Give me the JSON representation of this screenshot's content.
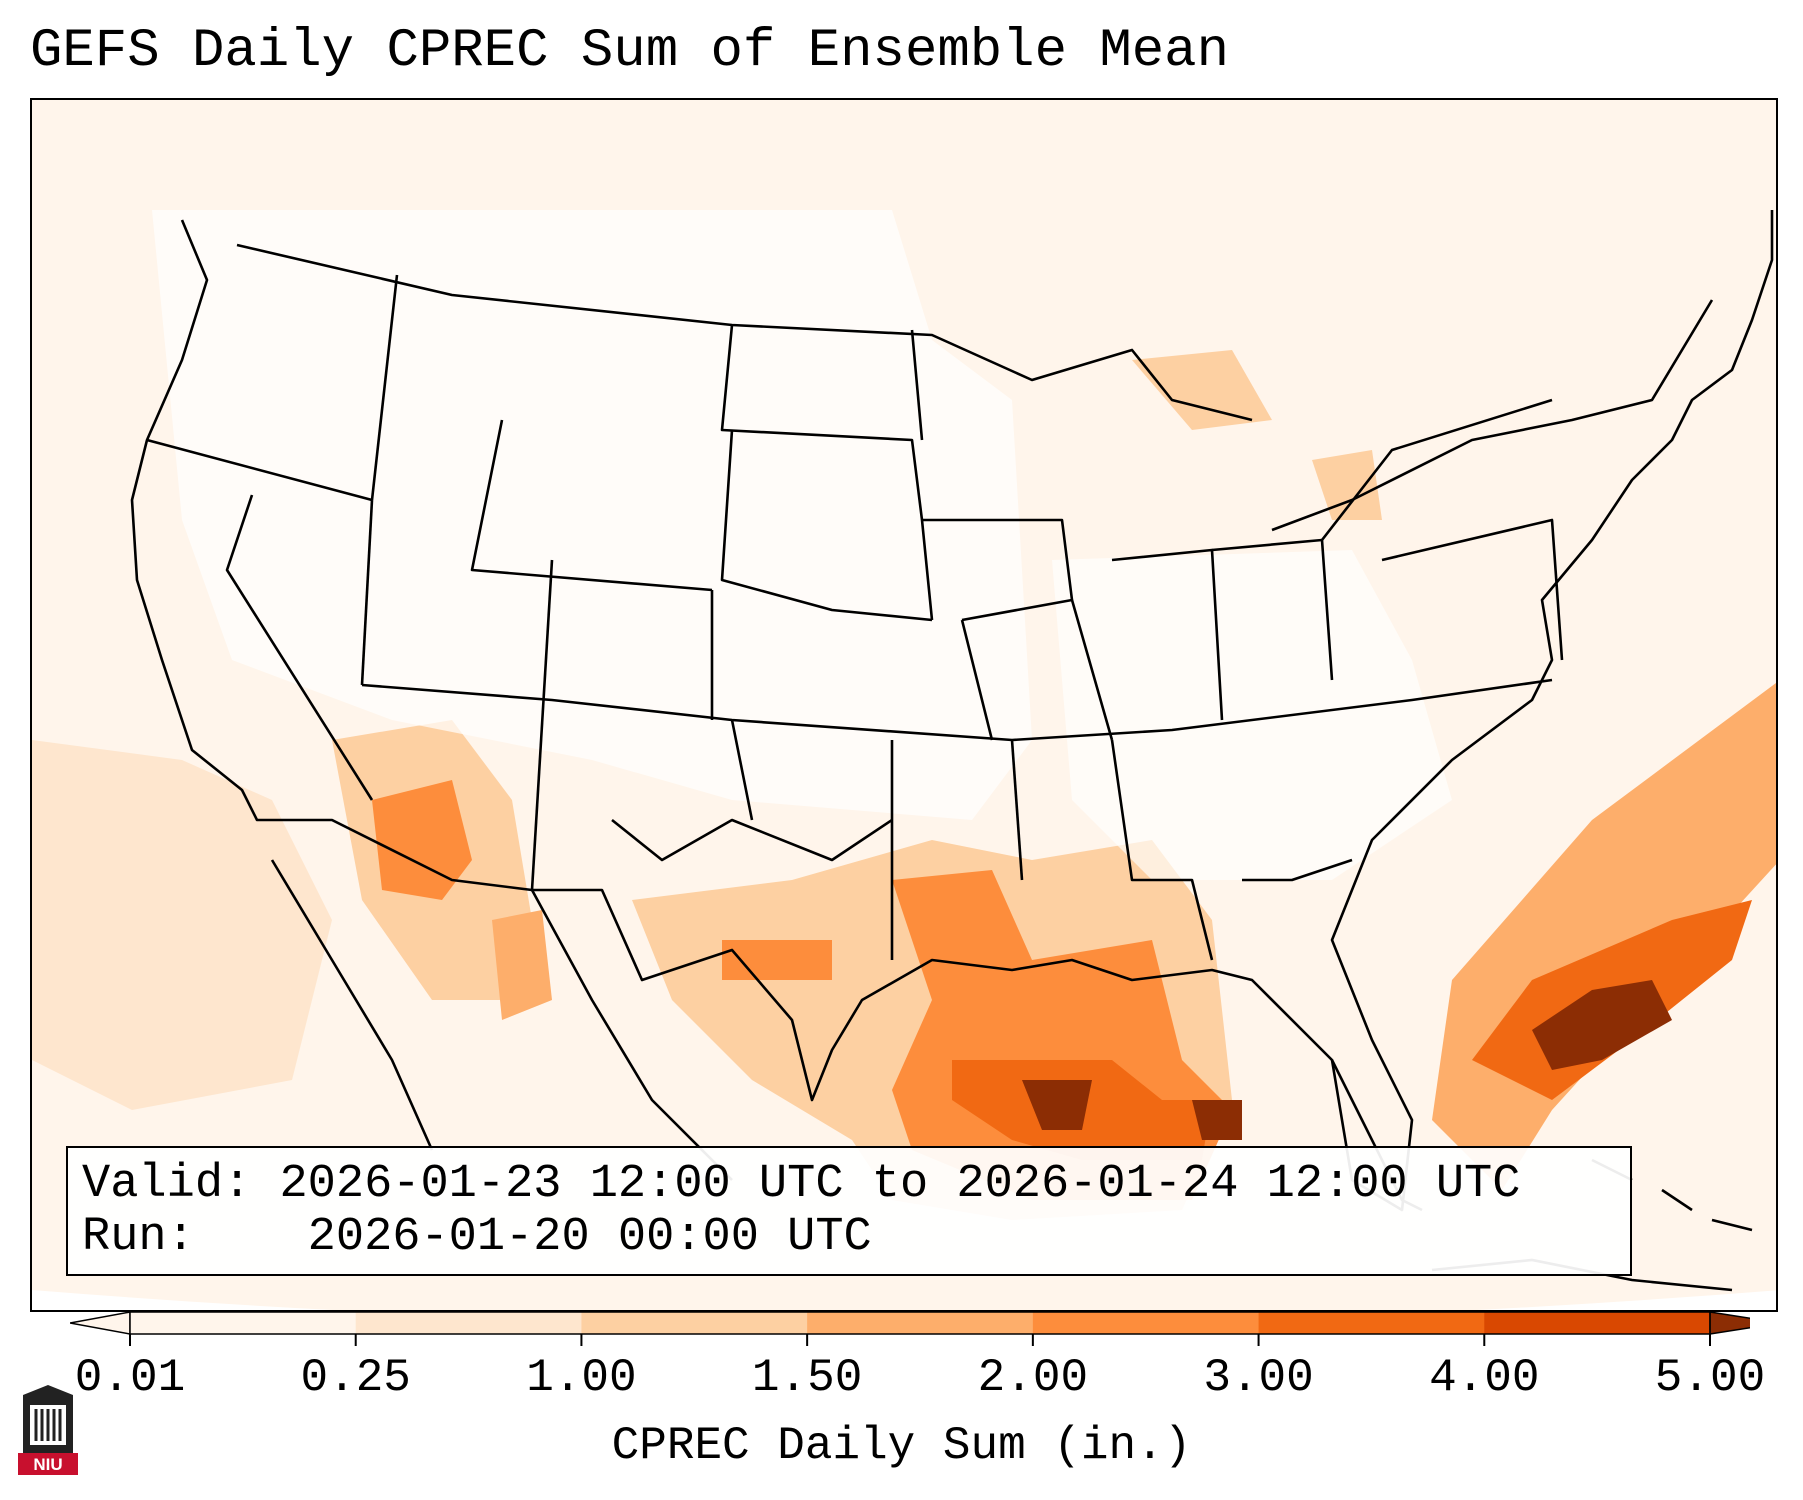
{
  "title": "GEFS Daily CPREC Sum of Ensemble Mean",
  "info": {
    "valid_label": "Valid:",
    "valid_value": "2026-01-23 12:00 UTC to 2026-01-24 12:00 UTC",
    "run_label": "Run:",
    "run_value": "2026-01-20 00:00 UTC"
  },
  "colorbar": {
    "label": "CPREC Daily Sum (in.)",
    "levels": [
      "0.01",
      "0.25",
      "1.00",
      "1.50",
      "2.00",
      "3.00",
      "4.00",
      "5.00"
    ],
    "colors": [
      "#fff5eb",
      "#fee6ce",
      "#fdd0a2",
      "#fdae6b",
      "#fd8d3c",
      "#f16913",
      "#d94801",
      "#8c2d04"
    ]
  },
  "logo": {
    "text": "NIU",
    "icon": "university-tower-icon",
    "color": "#c8102e"
  },
  "map": {
    "projection": "Lambert conformal over contiguous United States",
    "features": [
      "state boundaries",
      "country boundaries",
      "coastlines"
    ],
    "precip_maxima_regions": [
      "Gulf of Mexico",
      "off southeast Atlantic coast",
      "Louisiana"
    ]
  }
}
